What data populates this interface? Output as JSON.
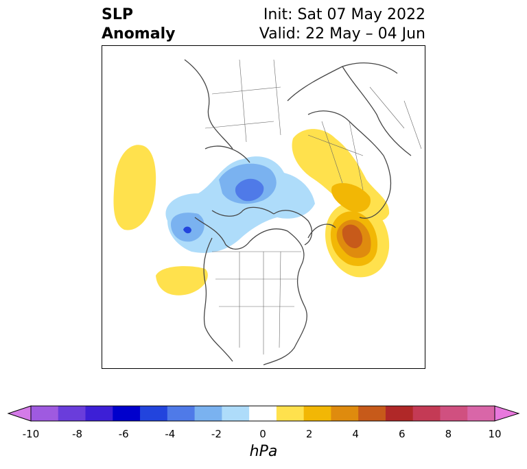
{
  "title": {
    "left_line1": "SLP",
    "left_line2": "Anomaly",
    "right_line1": "Init: Sat 07 May 2022",
    "right_line2": "Valid: 22 May – 04 Jun"
  },
  "map": {
    "projection": "polar-stereographic",
    "anomalies": [
      {
        "sign": "positive",
        "region": "North Pacific / Bering",
        "max_hPa": 1
      },
      {
        "sign": "positive",
        "region": "Northeast Pacific off North America",
        "max_hPa": 1
      },
      {
        "sign": "negative",
        "region": "Alaska / Chukchi",
        "min_hPa": -5
      },
      {
        "sign": "negative",
        "region": "Central Arctic / Siberian coast",
        "min_hPa": -5
      },
      {
        "sign": "positive",
        "region": "Eastern Europe / Western Russia",
        "max_hPa": 1
      },
      {
        "sign": "positive",
        "region": "Greenland / North Atlantic",
        "max_hPa": 5
      }
    ]
  },
  "colorbar": {
    "unit": "hPa",
    "ticks": [
      "-10",
      "-8",
      "-6",
      "-4",
      "-2",
      "0",
      "2",
      "4",
      "6",
      "8",
      "10"
    ],
    "colors": [
      "#d47be8",
      "#9f5ae0",
      "#6a3ddb",
      "#3d1fd6",
      "#0000cc",
      "#2244dd",
      "#4f7ae8",
      "#7ab2f0",
      "#aedcfa",
      "#ffffff",
      "#ffe14d",
      "#f2b705",
      "#df8b0e",
      "#c75a1a",
      "#b02828",
      "#c43a55",
      "#d05080",
      "#d966a8",
      "#e878dd"
    ]
  }
}
